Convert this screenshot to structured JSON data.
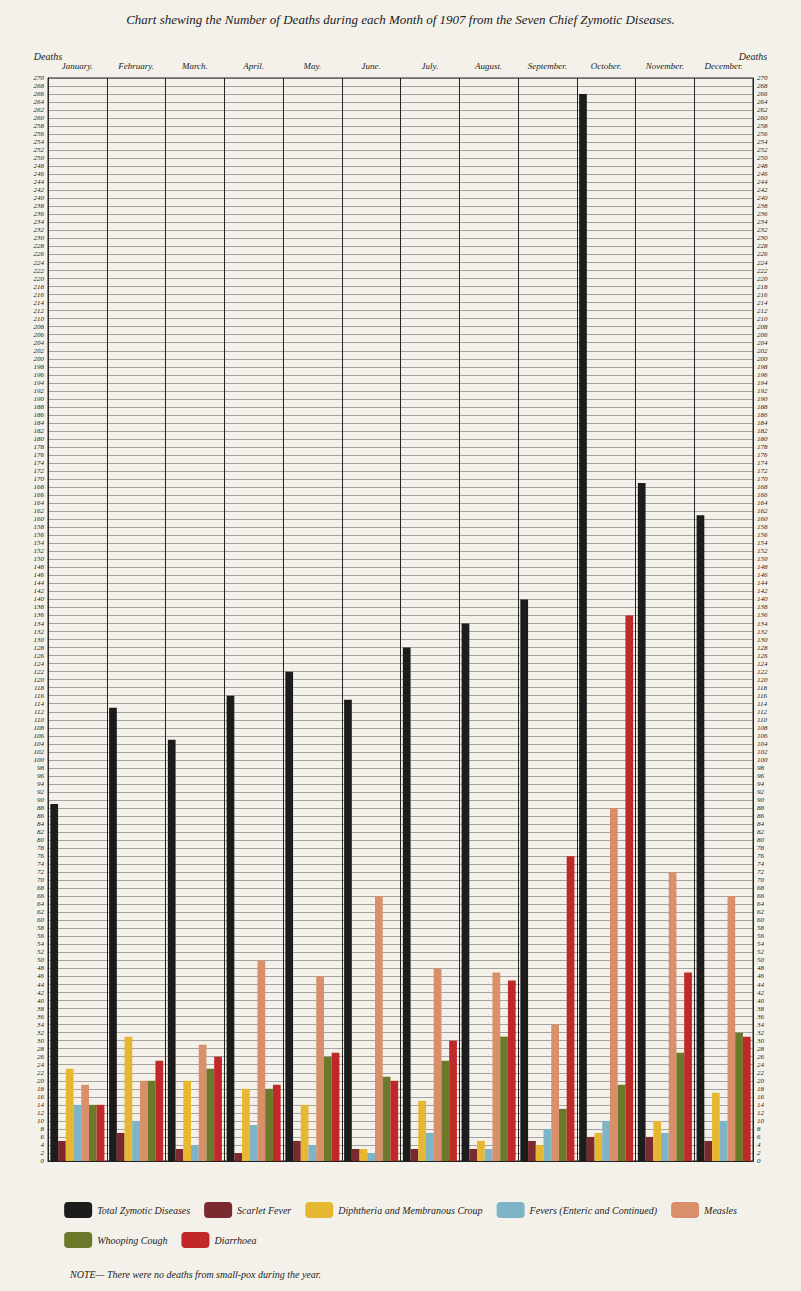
{
  "chart_data": {
    "type": "bar",
    "title": "Chart shewing the Number of Deaths during each Month of 1907 from the Seven Chief Zymotic Diseases.",
    "y_label": "Deaths",
    "annotation": "NOTE— There were no deaths from small-pox during the year.",
    "categories": [
      "January.",
      "February.",
      "March.",
      "April.",
      "May.",
      "June.",
      "July.",
      "August.",
      "September.",
      "October.",
      "November.",
      "December."
    ],
    "series": [
      {
        "name": "Total Zymotic Diseases",
        "color": "#1c1c1c",
        "values": [
          89,
          113,
          105,
          116,
          122,
          115,
          128,
          134,
          140,
          266,
          169,
          161
        ]
      },
      {
        "name": "Scarlet Fever",
        "color": "#7a2a2e",
        "values": [
          5,
          7,
          3,
          2,
          5,
          3,
          3,
          3,
          5,
          6,
          6,
          5
        ]
      },
      {
        "name": "Diphtheria and Membranous Croup",
        "color": "#e6b832",
        "values": [
          23,
          31,
          20,
          18,
          14,
          3,
          15,
          5,
          4,
          7,
          10,
          17
        ]
      },
      {
        "name": "Fevers (Enteric and Continued)",
        "color": "#7fb3c8",
        "values": [
          14,
          10,
          4,
          9,
          4,
          2,
          7,
          3,
          8,
          10,
          7,
          10
        ]
      },
      {
        "name": "Measles",
        "color": "#d98f6a",
        "values": [
          19,
          20,
          29,
          50,
          46,
          66,
          48,
          47,
          34,
          88,
          72,
          66
        ]
      },
      {
        "name": "Whooping Cough",
        "color": "#6b7a2a",
        "values": [
          14,
          20,
          23,
          18,
          26,
          21,
          25,
          31,
          13,
          19,
          27,
          32
        ]
      },
      {
        "name": "Diarrhoea",
        "color": "#c0282a",
        "values": [
          14,
          25,
          26,
          19,
          27,
          20,
          30,
          45,
          76,
          136,
          47,
          31
        ]
      }
    ],
    "ylim": [
      0,
      270
    ],
    "yticks": [
      0,
      2,
      4,
      6,
      8,
      10,
      12,
      14,
      16,
      18,
      20,
      22,
      24,
      26,
      28,
      30,
      32,
      34,
      36,
      38,
      40,
      42,
      44,
      46,
      48,
      50,
      52,
      54,
      56,
      58,
      60,
      62,
      64,
      66,
      68,
      70,
      72,
      74,
      76,
      78,
      80,
      82,
      84,
      86,
      88,
      90,
      92,
      94,
      96,
      98,
      100,
      102,
      104,
      106,
      108,
      110,
      112,
      114,
      116,
      118,
      120,
      122,
      124,
      126,
      128,
      130,
      132,
      134,
      136,
      138,
      140,
      142,
      144,
      146,
      148,
      150,
      152,
      154,
      156,
      158,
      160,
      162,
      164,
      166,
      168,
      170,
      172,
      174,
      176,
      178,
      180,
      182,
      184,
      186,
      188,
      190,
      192,
      194,
      196,
      198,
      200,
      202,
      204,
      206,
      208,
      210,
      212,
      214,
      216,
      218,
      220,
      222,
      224,
      226,
      228,
      230,
      232,
      234,
      236,
      238,
      240,
      242,
      244,
      246,
      248,
      250,
      252,
      254,
      256,
      258,
      260,
      262,
      264,
      266,
      268,
      270
    ],
    "grid": true,
    "legend": "bottom"
  }
}
